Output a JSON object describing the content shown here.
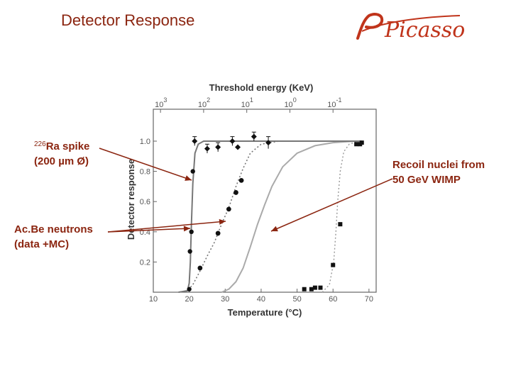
{
  "slide": {
    "title": "Detector Response",
    "logo_text": "Picasso"
  },
  "annotations": {
    "ra_isotope_mass": "226",
    "ra_line1": "Ra spike",
    "ra_line2": "(200 µm Ø)",
    "acbe_line1": "Ac.Be neutrons",
    "acbe_line2": "(data +MC)",
    "wimp_line1": "Recoil nuclei from",
    "wimp_line2": "50 GeV WIMP"
  },
  "colors": {
    "accent": "#8b2510",
    "data_points": "#111111",
    "fit_curve": "#777777",
    "mc_curve": "#aaaaaa"
  },
  "chart_data": {
    "type": "line",
    "xlabel": "Temperature (°C)",
    "ylabel": "Detector response",
    "top_axis_label": "Threshold energy (KeV)",
    "xlim": [
      10,
      72
    ],
    "ylim": [
      0,
      1.1
    ],
    "x_ticks": [
      10,
      20,
      30,
      40,
      50,
      60,
      70
    ],
    "y_ticks": [
      0.2,
      0.4,
      0.6,
      0.8,
      1.0
    ],
    "y_tick_labels": [
      "0.2",
      "0.4",
      "0.6",
      "0.8",
      "1.0"
    ],
    "top_ticks": [
      {
        "base": "10",
        "exp": "3",
        "temperature": 12
      },
      {
        "base": "10",
        "exp": "2",
        "temperature": 24
      },
      {
        "base": "10",
        "exp": "1",
        "temperature": 36
      },
      {
        "base": "10",
        "exp": "0",
        "temperature": 48
      },
      {
        "base": "10",
        "exp": "-1",
        "temperature": 60
      }
    ],
    "series": [
      {
        "style": "radium-points",
        "points": [
          [
            20,
            0.02
          ],
          [
            20.2,
            0.27
          ],
          [
            20.6,
            0.4
          ],
          [
            21,
            0.8
          ],
          [
            21.5,
            1.0
          ],
          [
            25,
            0.95
          ],
          [
            28,
            0.96
          ],
          [
            32,
            1.0
          ],
          [
            33.5,
            0.96
          ],
          [
            38,
            1.03
          ],
          [
            42,
            0.99
          ]
        ],
        "errors": [
          0,
          0,
          0,
          0,
          0.03,
          0.03,
          0.03,
          0.03,
          0,
          0.03,
          0.04
        ]
      },
      {
        "style": "radium-fit",
        "points": [
          [
            17,
            0
          ],
          [
            19.5,
            0.01
          ],
          [
            20,
            0.06
          ],
          [
            20.3,
            0.2
          ],
          [
            20.6,
            0.45
          ],
          [
            21,
            0.72
          ],
          [
            21.6,
            0.92
          ],
          [
            22.5,
            0.98
          ],
          [
            24,
            1.0
          ],
          [
            35,
            1.0
          ],
          [
            50,
            1.0
          ],
          [
            68,
            1.0
          ]
        ]
      },
      {
        "style": "acbe-points",
        "points": [
          [
            23,
            0.16
          ],
          [
            28,
            0.39
          ],
          [
            31,
            0.55
          ],
          [
            33,
            0.66
          ],
          [
            34.5,
            0.74
          ]
        ]
      },
      {
        "style": "acbe-mc",
        "points": [
          [
            19,
            0
          ],
          [
            21,
            0.05
          ],
          [
            23,
            0.14
          ],
          [
            25,
            0.24
          ],
          [
            27,
            0.33
          ],
          [
            29,
            0.45
          ],
          [
            31,
            0.56
          ],
          [
            33,
            0.7
          ],
          [
            35,
            0.82
          ],
          [
            37,
            0.92
          ],
          [
            40,
            0.98
          ],
          [
            45,
            1.0
          ],
          [
            60,
            1.0
          ]
        ]
      },
      {
        "style": "wimp-curve",
        "points": [
          [
            29,
            0
          ],
          [
            31,
            0.02
          ],
          [
            33,
            0.07
          ],
          [
            35,
            0.16
          ],
          [
            37,
            0.3
          ],
          [
            39,
            0.45
          ],
          [
            41,
            0.58
          ],
          [
            43,
            0.7
          ],
          [
            46,
            0.83
          ],
          [
            50,
            0.92
          ],
          [
            55,
            0.97
          ],
          [
            60,
            0.99
          ],
          [
            66,
            1.0
          ],
          [
            68,
            1.0
          ]
        ]
      },
      {
        "style": "wimp-points",
        "points": [
          [
            52,
            0.02
          ],
          [
            54,
            0.02
          ],
          [
            55,
            0.03
          ],
          [
            56.5,
            0.03
          ],
          [
            60,
            0.18
          ],
          [
            62,
            0.45
          ],
          [
            66.5,
            0.98
          ],
          [
            67.5,
            0.98
          ],
          [
            68,
            0.99
          ]
        ]
      },
      {
        "style": "wimp-dotted",
        "points": [
          [
            57,
            0
          ],
          [
            59,
            0.05
          ],
          [
            60.2,
            0.2
          ],
          [
            60.8,
            0.4
          ],
          [
            61.3,
            0.6
          ],
          [
            62,
            0.8
          ],
          [
            63,
            0.93
          ],
          [
            64.5,
            0.98
          ],
          [
            67,
            1.0
          ]
        ]
      }
    ]
  }
}
